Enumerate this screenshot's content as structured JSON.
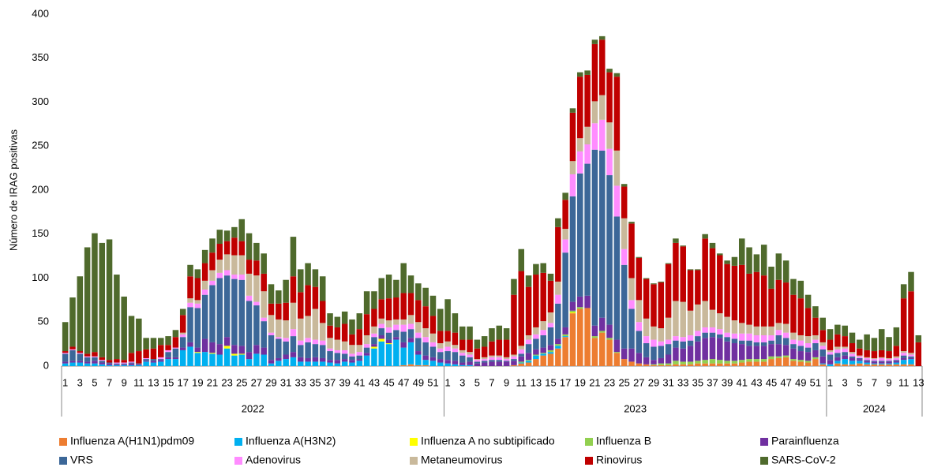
{
  "chart_data": {
    "type": "stacked-bar",
    "y_label": "Número de IRAG positivas",
    "ylim": [
      0,
      400
    ],
    "yticks": [
      0,
      50,
      100,
      150,
      200,
      250,
      300,
      350,
      400
    ],
    "categories": [
      "1",
      null,
      "3",
      null,
      "5",
      null,
      "7",
      null,
      "9",
      null,
      "11",
      null,
      "13",
      null,
      "15",
      null,
      "17",
      null,
      "19",
      null,
      "21",
      null,
      "23",
      null,
      "25",
      null,
      "27",
      null,
      "29",
      null,
      "31",
      null,
      "33",
      null,
      "35",
      null,
      "37",
      null,
      "39",
      null,
      "41",
      null,
      "43",
      null,
      "45",
      null,
      "47",
      null,
      "49",
      null,
      "51",
      null,
      "1",
      null,
      "3",
      null,
      "5",
      null,
      "7",
      null,
      "9",
      null,
      "11",
      null,
      "13",
      null,
      "15",
      null,
      "17",
      null,
      "19",
      null,
      "21",
      null,
      "23",
      null,
      "25",
      null,
      "27",
      null,
      "29",
      null,
      "31",
      null,
      "33",
      null,
      "35",
      null,
      "37",
      null,
      "39",
      null,
      "41",
      null,
      "43",
      null,
      "45",
      null,
      "47",
      null,
      "49",
      null,
      "51",
      null,
      "1",
      null,
      "3",
      null,
      "5",
      null,
      "7",
      null,
      "9",
      null,
      "11",
      null,
      "13"
    ],
    "x_groups": [
      "2022",
      "2023",
      "2024"
    ],
    "series": [
      {
        "name": "Influenza A(H1N1)pdm09",
        "color": "#ED7D31",
        "values": [
          0,
          0,
          0,
          0,
          0,
          0,
          0,
          0,
          0,
          0,
          0,
          0,
          0,
          0,
          0,
          0,
          0,
          0,
          0,
          0,
          0,
          0,
          0,
          0,
          0,
          0,
          0,
          0,
          0,
          0,
          0,
          0,
          0,
          0,
          0,
          0,
          0,
          0,
          0,
          0,
          0,
          0,
          0,
          0,
          0,
          0,
          1,
          2,
          1,
          1,
          0,
          0,
          0,
          0,
          0,
          0,
          0,
          0,
          0,
          0,
          0,
          1,
          3,
          4,
          8,
          12,
          14,
          20,
          33,
          60,
          65,
          66,
          32,
          38,
          30,
          15,
          8,
          5,
          3,
          2,
          1,
          1,
          1,
          2,
          2,
          2,
          3,
          3,
          3,
          3,
          3,
          3,
          4,
          5,
          5,
          5,
          8,
          9,
          10,
          6,
          5,
          4,
          8,
          2,
          0,
          3,
          2,
          2,
          3,
          2,
          2,
          2,
          2,
          2,
          2,
          2,
          0
        ]
      },
      {
        "name": "Influenza A(H3N2)",
        "color": "#00B0F0",
        "values": [
          3,
          4,
          4,
          3,
          3,
          2,
          1,
          1,
          1,
          1,
          1,
          5,
          4,
          5,
          8,
          8,
          18,
          22,
          15,
          16,
          14,
          13,
          20,
          12,
          13,
          8,
          14,
          13,
          3,
          6,
          8,
          10,
          5,
          5,
          5,
          5,
          4,
          3,
          5,
          4,
          6,
          12,
          20,
          28,
          25,
          30,
          20,
          25,
          12,
          6,
          6,
          4,
          3,
          2,
          1,
          1,
          0,
          0,
          0,
          0,
          0,
          0,
          1,
          2,
          4,
          2,
          2,
          3,
          1,
          0,
          0,
          0,
          0,
          0,
          0,
          0,
          0,
          0,
          0,
          0,
          0,
          0,
          0,
          0,
          0,
          0,
          0,
          0,
          0,
          0,
          0,
          0,
          0,
          0,
          0,
          0,
          0,
          0,
          0,
          0,
          0,
          0,
          0,
          1,
          2,
          3,
          6,
          4,
          3,
          2,
          1,
          1,
          1,
          2,
          5,
          6,
          0
        ]
      },
      {
        "name": "Influenza A no subtipificado",
        "color": "#FFFF00",
        "values": [
          0,
          0,
          0,
          0,
          0,
          0,
          0,
          0,
          0,
          0,
          0,
          0,
          0,
          0,
          0,
          0,
          0,
          0,
          1,
          0,
          1,
          0,
          3,
          2,
          1,
          0,
          0,
          0,
          0,
          0,
          0,
          0,
          0,
          0,
          0,
          0,
          0,
          0,
          0,
          0,
          0,
          0,
          2,
          3,
          1,
          0,
          0,
          0,
          0,
          0,
          0,
          0,
          0,
          0,
          0,
          0,
          0,
          0,
          0,
          0,
          0,
          0,
          0,
          0,
          0,
          0,
          0,
          0,
          0,
          1,
          0,
          0,
          0,
          0,
          0,
          0,
          0,
          0,
          0,
          0,
          0,
          0,
          0,
          0,
          0,
          0,
          0,
          0,
          0,
          0,
          0,
          0,
          0,
          0,
          0,
          0,
          0,
          0,
          0,
          0,
          0,
          0,
          0,
          0,
          0,
          0,
          0,
          0,
          0,
          0,
          0,
          0,
          0,
          0,
          0,
          0,
          0
        ]
      },
      {
        "name": "Influenza B",
        "color": "#92D050",
        "values": [
          0,
          0,
          0,
          0,
          0,
          0,
          0,
          0,
          0,
          0,
          0,
          0,
          0,
          0,
          0,
          0,
          0,
          0,
          0,
          0,
          0,
          0,
          0,
          0,
          0,
          0,
          0,
          0,
          0,
          0,
          0,
          0,
          0,
          0,
          0,
          0,
          0,
          0,
          0,
          0,
          0,
          0,
          0,
          0,
          0,
          0,
          0,
          0,
          0,
          0,
          0,
          0,
          0,
          0,
          0,
          0,
          0,
          0,
          0,
          0,
          0,
          0,
          1,
          1,
          1,
          1,
          2,
          2,
          2,
          2,
          2,
          0,
          2,
          2,
          2,
          1,
          0,
          0,
          0,
          0,
          1,
          2,
          2,
          4,
          3,
          3,
          3,
          4,
          5,
          4,
          3,
          3,
          3,
          3,
          3,
          3,
          3,
          2,
          2,
          2,
          2,
          2,
          2,
          0,
          0,
          0,
          0,
          0,
          0,
          0,
          0,
          0,
          0,
          0,
          0,
          0,
          0
        ]
      },
      {
        "name": "Parainfluenza",
        "color": "#7030A0",
        "values": [
          2,
          2,
          2,
          2,
          3,
          2,
          2,
          1,
          1,
          2,
          1,
          1,
          2,
          2,
          2,
          2,
          3,
          5,
          5,
          15,
          12,
          12,
          10,
          10,
          9,
          8,
          10,
          8,
          4,
          3,
          5,
          6,
          5,
          4,
          5,
          4,
          3,
          4,
          3,
          3,
          2,
          3,
          3,
          4,
          4,
          3,
          6,
          5,
          4,
          5,
          4,
          4,
          4,
          4,
          3,
          4,
          3,
          4,
          5,
          5,
          5,
          5,
          6,
          8,
          6,
          6,
          6,
          6,
          8,
          10,
          12,
          14,
          12,
          15,
          15,
          14,
          12,
          15,
          12,
          8,
          5,
          6,
          10,
          15,
          15,
          18,
          22,
          25,
          25,
          25,
          22,
          20,
          18,
          15,
          15,
          15,
          14,
          14,
          12,
          12,
          10,
          10,
          8,
          8,
          5,
          4,
          4,
          3,
          2,
          2,
          2,
          2,
          2,
          2,
          2,
          1,
          0
        ]
      },
      {
        "name": "VRS",
        "color": "#3C6798",
        "values": [
          9,
          12,
          8,
          5,
          4,
          2,
          1,
          1,
          1,
          1,
          1,
          2,
          2,
          1,
          6,
          10,
          12,
          40,
          45,
          50,
          65,
          75,
          70,
          75,
          75,
          58,
          45,
          30,
          28,
          22,
          15,
          18,
          14,
          18,
          15,
          15,
          10,
          8,
          6,
          4,
          4,
          6,
          8,
          8,
          8,
          8,
          12,
          10,
          15,
          15,
          12,
          8,
          10,
          10,
          8,
          5,
          2,
          2,
          2,
          2,
          1,
          2,
          3,
          10,
          12,
          14,
          20,
          40,
          85,
          120,
          140,
          150,
          200,
          190,
          170,
          140,
          95,
          45,
          25,
          16,
          15,
          14,
          12,
          8,
          8,
          6,
          6,
          6,
          5,
          4,
          5,
          5,
          4,
          6,
          4,
          4,
          4,
          10,
          8,
          5,
          6,
          5,
          8,
          8,
          6,
          5,
          4,
          2,
          1,
          1,
          1,
          1,
          1,
          1,
          3,
          2,
          0
        ]
      },
      {
        "name": "Adenovirus",
        "color": "#FF8CFF",
        "values": [
          1,
          1,
          1,
          1,
          1,
          1,
          0,
          1,
          1,
          1,
          0,
          1,
          0,
          2,
          2,
          1,
          3,
          5,
          5,
          6,
          5,
          6,
          6,
          5,
          6,
          6,
          4,
          4,
          3,
          2,
          4,
          8,
          5,
          5,
          5,
          5,
          3,
          3,
          4,
          3,
          4,
          4,
          4,
          5,
          6,
          6,
          8,
          6,
          6,
          6,
          5,
          4,
          5,
          4,
          3,
          3,
          2,
          2,
          3,
          3,
          2,
          3,
          5,
          5,
          5,
          6,
          5,
          10,
          15,
          25,
          25,
          22,
          30,
          35,
          30,
          35,
          18,
          10,
          10,
          8,
          8,
          5,
          5,
          5,
          5,
          6,
          6,
          6,
          6,
          6,
          5,
          6,
          8,
          8,
          8,
          8,
          6,
          6,
          6,
          5,
          6,
          5,
          4,
          4,
          3,
          4,
          4,
          3,
          2,
          2,
          2,
          3,
          2,
          2,
          3,
          2,
          0
        ]
      },
      {
        "name": "Metaneumovirus",
        "color": "#C9B99B",
        "values": [
          0,
          0,
          0,
          0,
          0,
          0,
          0,
          0,
          0,
          0,
          0,
          0,
          0,
          0,
          0,
          0,
          2,
          5,
          4,
          10,
          12,
          15,
          18,
          22,
          22,
          25,
          30,
          30,
          20,
          20,
          20,
          30,
          25,
          25,
          35,
          20,
          12,
          12,
          10,
          10,
          8,
          10,
          8,
          6,
          8,
          6,
          6,
          10,
          12,
          10,
          10,
          6,
          6,
          4,
          3,
          3,
          1,
          2,
          2,
          2,
          2,
          2,
          4,
          5,
          8,
          10,
          12,
          15,
          12,
          15,
          15,
          20,
          25,
          28,
          30,
          40,
          35,
          25,
          25,
          20,
          15,
          15,
          25,
          40,
          40,
          28,
          30,
          30,
          20,
          18,
          18,
          15,
          12,
          10,
          10,
          10,
          10,
          8,
          10,
          8,
          6,
          8,
          5,
          4,
          2,
          3,
          2,
          2,
          1,
          1,
          1,
          1,
          1,
          2,
          2,
          2,
          0
        ]
      },
      {
        "name": "Rinovirus",
        "color": "#C00000",
        "values": [
          2,
          3,
          2,
          3,
          5,
          3,
          3,
          4,
          3,
          10,
          14,
          10,
          12,
          14,
          6,
          12,
          20,
          25,
          25,
          20,
          20,
          18,
          15,
          20,
          16,
          16,
          17,
          20,
          13,
          18,
          20,
          30,
          30,
          35,
          25,
          25,
          14,
          14,
          20,
          12,
          18,
          24,
          20,
          22,
          25,
          25,
          30,
          25,
          25,
          25,
          20,
          14,
          12,
          14,
          12,
          14,
          12,
          12,
          16,
          18,
          20,
          68,
          85,
          55,
          60,
          55,
          36,
          62,
          33,
          55,
          70,
          59,
          65,
          63,
          57,
          84,
          36,
          62,
          48,
          45,
          48,
          52,
          61,
          66,
          63,
          46,
          39,
          71,
          70,
          66,
          60,
          62,
          66,
          58,
          62,
          58,
          43,
          49,
          47,
          43,
          42,
          32,
          20,
          14,
          12,
          14,
          12,
          10,
          8,
          8,
          8,
          8,
          8,
          12,
          60,
          70,
          27
        ]
      },
      {
        "name": "SARS-CoV-2",
        "color": "#4F6A2C",
        "values": [
          33,
          56,
          85,
          121,
          135,
          130,
          137,
          96,
          72,
          42,
          37,
          13,
          12,
          8,
          10,
          8,
          7,
          13,
          10,
          15,
          16,
          16,
          12,
          12,
          25,
          30,
          20,
          23,
          22,
          15,
          26,
          45,
          26,
          25,
          20,
          28,
          14,
          12,
          14,
          17,
          18,
          26,
          20,
          24,
          27,
          20,
          34,
          20,
          19,
          21,
          23,
          25,
          36,
          22,
          15,
          15,
          10,
          12,
          15,
          16,
          13,
          18,
          25,
          13,
          12,
          11,
          8,
          10,
          8,
          5,
          5,
          5,
          5,
          4,
          4,
          4,
          3,
          2,
          1,
          1,
          1,
          1,
          1,
          5,
          1,
          1,
          1,
          5,
          6,
          2,
          4,
          10,
          30,
          30,
          20,
          35,
          25,
          30,
          25,
          18,
          20,
          15,
          13,
          14,
          12,
          11,
          12,
          12,
          10,
          18,
          15,
          24,
          16,
          21,
          16,
          22,
          8
        ]
      }
    ]
  }
}
